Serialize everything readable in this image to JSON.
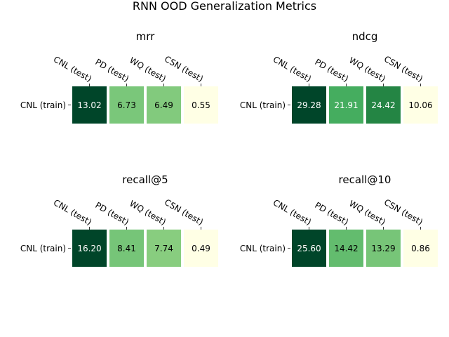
{
  "title": "RNN OOD Generalization Metrics",
  "chart_data": [
    {
      "type": "heatmap",
      "title": "mrr",
      "row_labels": [
        "CNL (train)"
      ],
      "col_labels": [
        "CNL (test)",
        "PD (test)",
        "WQ (test)",
        "CSN (test)"
      ],
      "values": [
        [
          13.02,
          6.73,
          6.49,
          0.55
        ]
      ],
      "cell_labels": [
        "13.02",
        "6.73",
        "6.49",
        "0.55"
      ],
      "colormap": "YlGn"
    },
    {
      "type": "heatmap",
      "title": "ndcg",
      "row_labels": [
        "CNL (train)"
      ],
      "col_labels": [
        "CNL (test)",
        "PD (test)",
        "WQ (test)",
        "CSN (test)"
      ],
      "values": [
        [
          29.28,
          21.91,
          24.42,
          10.06
        ]
      ],
      "cell_labels": [
        "29.28",
        "21.91",
        "24.42",
        "10.06"
      ],
      "colormap": "YlGn"
    },
    {
      "type": "heatmap",
      "title": "recall@5",
      "row_labels": [
        "CNL (train)"
      ],
      "col_labels": [
        "CNL (test)",
        "PD (test)",
        "WQ (test)",
        "CSN (test)"
      ],
      "values": [
        [
          16.2,
          8.41,
          7.74,
          0.49
        ]
      ],
      "cell_labels": [
        "16.20",
        "8.41",
        "7.74",
        "0.49"
      ],
      "colormap": "YlGn"
    },
    {
      "type": "heatmap",
      "title": "recall@10",
      "row_labels": [
        "CNL (train)"
      ],
      "col_labels": [
        "CNL (test)",
        "PD (test)",
        "WQ (test)",
        "CSN (test)"
      ],
      "values": [
        [
          25.6,
          14.42,
          13.29,
          0.86
        ]
      ],
      "cell_labels": [
        "25.60",
        "14.42",
        "13.29",
        "0.86"
      ],
      "colormap": "YlGn"
    }
  ]
}
